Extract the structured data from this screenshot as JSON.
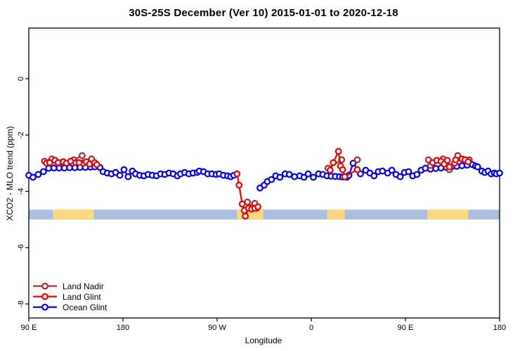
{
  "title": "30S-25S December (Ver 10)   2015-01-01 to 2020-12-18",
  "xlabel": "Longitude",
  "ylabel": "XCO2 - MLO trend (ppm)",
  "chart_data": {
    "type": "scatter",
    "x_axis": {
      "range": [
        90,
        540
      ],
      "ticks": [
        90,
        180,
        270,
        360,
        450,
        540
      ],
      "tick_labels": [
        "90 E",
        "180",
        "90 W",
        "0",
        "90 E",
        "180"
      ],
      "wraps_longitude": true
    },
    "y_axis": {
      "range": [
        -8.5,
        1.8
      ],
      "ticks": [
        0,
        -2,
        -4,
        -6,
        -8
      ],
      "tick_labels": [
        "0",
        "-2",
        "-4",
        "-6",
        "-8"
      ]
    },
    "grid": false,
    "surface_band": {
      "y_top": -4.65,
      "y_bottom": -5.0,
      "ocean_color": "#a9bee0",
      "land_color": "#fdd880",
      "land_segments_deg": [
        [
          113,
          152
        ],
        [
          289,
          314
        ],
        [
          375,
          392
        ],
        [
          471,
          510
        ]
      ]
    },
    "legend": {
      "position": "bottom-left"
    },
    "series": [
      {
        "name": "Land Nadir",
        "color": "#a02d2d",
        "z": 2,
        "points": [
          [
            105,
            -2.93
          ],
          [
            112,
            -2.85
          ],
          [
            121,
            -2.98
          ],
          [
            133,
            -2.88
          ],
          [
            141,
            -2.73
          ],
          [
            142,
            -3.0
          ],
          [
            150,
            -2.85
          ],
          [
            299,
            -4.38
          ],
          [
            301,
            -4.58
          ],
          [
            304,
            -4.55
          ],
          [
            306,
            -4.43
          ],
          [
            308,
            -4.6
          ],
          [
            376,
            -3.18
          ],
          [
            389,
            -2.88
          ],
          [
            404,
            -2.88
          ],
          [
            472,
            -2.88
          ],
          [
            474,
            -3.08
          ],
          [
            486,
            -2.85
          ],
          [
            492,
            -3.23
          ],
          [
            500,
            -2.73
          ],
          [
            511,
            -2.88
          ]
        ]
      },
      {
        "name": "Land Glint",
        "color": "#ee0000",
        "z": 3,
        "points": [
          [
            107,
            -3.0
          ],
          [
            110,
            -2.98
          ],
          [
            115,
            -2.9
          ],
          [
            118,
            -2.98
          ],
          [
            123,
            -2.95
          ],
          [
            126,
            -3.0
          ],
          [
            130,
            -2.93
          ],
          [
            135,
            -2.98
          ],
          [
            138,
            -2.98
          ],
          [
            145,
            -2.95
          ],
          [
            148,
            -3.03
          ],
          [
            153,
            -2.98
          ],
          [
            155,
            -3.05
          ],
          [
            289,
            -3.38
          ],
          [
            291,
            -3.78
          ],
          [
            294,
            -4.45
          ],
          [
            296,
            -4.68
          ],
          [
            297,
            -4.88
          ],
          [
            300,
            -4.6
          ],
          [
            303,
            -4.63
          ],
          [
            306,
            -4.6
          ],
          [
            309,
            -4.55
          ],
          [
            378,
            -3.25
          ],
          [
            381,
            -2.98
          ],
          [
            386,
            -2.58
          ],
          [
            388,
            -3.1
          ],
          [
            390,
            -3.23
          ],
          [
            392,
            -3.48
          ],
          [
            404,
            -3.23
          ],
          [
            476,
            -2.98
          ],
          [
            480,
            -2.9
          ],
          [
            484,
            -2.93
          ],
          [
            487,
            -3.03
          ],
          [
            490,
            -2.9
          ],
          [
            492,
            -3.13
          ],
          [
            497,
            -3.0
          ],
          [
            498,
            -2.88
          ],
          [
            504,
            -2.85
          ],
          [
            507,
            -2.88
          ],
          [
            510,
            -2.95
          ]
        ]
      },
      {
        "name": "Ocean Glint",
        "color": "#0000ee",
        "z": 1,
        "points": [
          [
            90,
            -3.43
          ],
          [
            94,
            -3.5
          ],
          [
            99,
            -3.4
          ],
          [
            104,
            -3.3
          ],
          [
            109,
            -3.18
          ],
          [
            114,
            -3.17
          ],
          [
            119,
            -3.17
          ],
          [
            124,
            -3.17
          ],
          [
            129,
            -3.16
          ],
          [
            134,
            -3.16
          ],
          [
            139,
            -3.15
          ],
          [
            144,
            -3.15
          ],
          [
            149,
            -3.14
          ],
          [
            153,
            -3.13
          ],
          [
            158,
            -3.15
          ],
          [
            161,
            -3.3
          ],
          [
            165,
            -3.35
          ],
          [
            169,
            -3.38
          ],
          [
            173,
            -3.33
          ],
          [
            177,
            -3.43
          ],
          [
            181,
            -3.23
          ],
          [
            185,
            -3.48
          ],
          [
            189,
            -3.28
          ],
          [
            192,
            -3.38
          ],
          [
            196,
            -3.43
          ],
          [
            200,
            -3.45
          ],
          [
            204,
            -3.4
          ],
          [
            208,
            -3.43
          ],
          [
            212,
            -3.45
          ],
          [
            216,
            -3.38
          ],
          [
            220,
            -3.4
          ],
          [
            224,
            -3.35
          ],
          [
            228,
            -3.38
          ],
          [
            232,
            -3.45
          ],
          [
            235,
            -3.38
          ],
          [
            239,
            -3.33
          ],
          [
            243,
            -3.38
          ],
          [
            247,
            -3.35
          ],
          [
            251,
            -3.33
          ],
          [
            253,
            -3.28
          ],
          [
            257,
            -3.3
          ],
          [
            261,
            -3.38
          ],
          [
            265,
            -3.38
          ],
          [
            269,
            -3.4
          ],
          [
            272,
            -3.38
          ],
          [
            276,
            -3.43
          ],
          [
            280,
            -3.45
          ],
          [
            283,
            -3.48
          ],
          [
            286,
            -3.43
          ],
          [
            311,
            -3.88
          ],
          [
            315,
            -3.78
          ],
          [
            318,
            -3.65
          ],
          [
            322,
            -3.58
          ],
          [
            326,
            -3.45
          ],
          [
            330,
            -3.5
          ],
          [
            335,
            -3.38
          ],
          [
            339,
            -3.4
          ],
          [
            344,
            -3.48
          ],
          [
            349,
            -3.45
          ],
          [
            353,
            -3.5
          ],
          [
            357,
            -3.38
          ],
          [
            362,
            -3.5
          ],
          [
            367,
            -3.38
          ],
          [
            371,
            -3.4
          ],
          [
            375,
            -3.45
          ],
          [
            379,
            -3.46
          ],
          [
            383,
            -3.47
          ],
          [
            387,
            -3.48
          ],
          [
            390,
            -3.49
          ],
          [
            394,
            -3.5
          ],
          [
            396,
            -3.43
          ],
          [
            400,
            -3.0
          ],
          [
            407,
            -3.38
          ],
          [
            412,
            -3.25
          ],
          [
            416,
            -3.35
          ],
          [
            420,
            -3.45
          ],
          [
            424,
            -3.3
          ],
          [
            428,
            -3.28
          ],
          [
            433,
            -3.35
          ],
          [
            437,
            -3.25
          ],
          [
            441,
            -3.4
          ],
          [
            445,
            -3.48
          ],
          [
            449,
            -3.33
          ],
          [
            453,
            -3.3
          ],
          [
            457,
            -3.45
          ],
          [
            461,
            -3.4
          ],
          [
            465,
            -3.25
          ],
          [
            469,
            -3.18
          ],
          [
            474,
            -3.21
          ],
          [
            479,
            -3.19
          ],
          [
            484,
            -3.17
          ],
          [
            489,
            -3.15
          ],
          [
            494,
            -3.13
          ],
          [
            499,
            -3.11
          ],
          [
            504,
            -3.09
          ],
          [
            509,
            -3.07
          ],
          [
            514,
            -3.05
          ],
          [
            517,
            -3.1
          ],
          [
            519,
            -3.13
          ],
          [
            523,
            -3.28
          ],
          [
            526,
            -3.33
          ],
          [
            529,
            -3.28
          ],
          [
            532,
            -3.38
          ],
          [
            535,
            -3.35
          ],
          [
            537,
            -3.38
          ],
          [
            540,
            -3.35
          ]
        ]
      }
    ]
  }
}
